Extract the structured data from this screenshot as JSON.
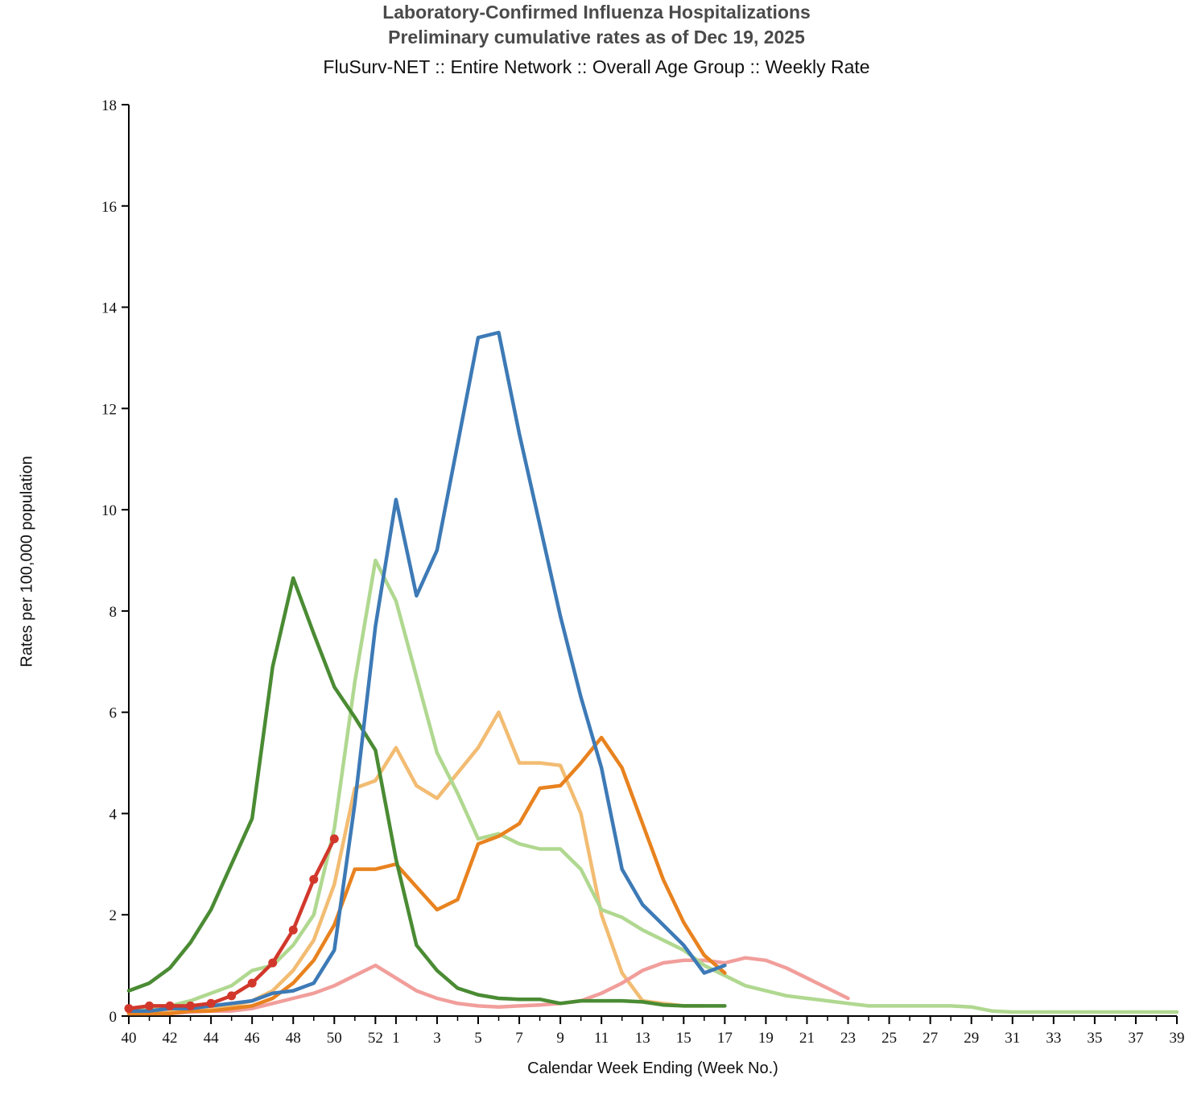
{
  "title": {
    "line1": "Laboratory-Confirmed Influenza Hospitalizations",
    "line2": "Preliminary cumulative rates as of Dec 19, 2025",
    "line3": "FluSurv-NET :: Entire Network :: Overall Age Group :: Weekly Rate"
  },
  "axes": {
    "y_label": "Rates per 100,000 population",
    "x_label": "Calendar Week Ending (Week No.)",
    "y_ticks": [
      0,
      2,
      4,
      6,
      8,
      10,
      12,
      14,
      16,
      18
    ],
    "x_tick_labels": [
      "40",
      "42",
      "44",
      "46",
      "48",
      "50",
      "52",
      "1",
      "3",
      "5",
      "7",
      "9",
      "11",
      "13",
      "15",
      "17",
      "19",
      "21",
      "23",
      "25",
      "27",
      "29",
      "31",
      "33",
      "35",
      "37",
      "39"
    ]
  },
  "chart_data": {
    "type": "line",
    "title": "Laboratory-Confirmed Influenza Hospitalizations — Weekly Rate",
    "xlabel": "Calendar Week Ending (Week No.)",
    "ylabel": "Rates per 100,000 population",
    "ylim": [
      0,
      18
    ],
    "grid": false,
    "legend": "none",
    "x_weeks": [
      40,
      41,
      42,
      43,
      44,
      45,
      46,
      47,
      48,
      49,
      50,
      51,
      52,
      1,
      2,
      3,
      4,
      5,
      6,
      7,
      8,
      9,
      10,
      11,
      12,
      13,
      14,
      15,
      16,
      17,
      18,
      19,
      20,
      21,
      22,
      23,
      24,
      25,
      26,
      27,
      28,
      29,
      30,
      31,
      32,
      33,
      34,
      35,
      36,
      37,
      38,
      39
    ],
    "series": [
      {
        "name": "tan-season",
        "color": "#f2bc72",
        "marker": false,
        "values": [
          0.05,
          0.05,
          0.1,
          0.1,
          0.15,
          0.2,
          0.3,
          0.5,
          0.9,
          1.5,
          2.6,
          4.5,
          4.65,
          5.3,
          4.55,
          4.3,
          4.8,
          5.3,
          6.0,
          5.0,
          5.0,
          4.95,
          4.0,
          2.0,
          0.85,
          0.3,
          0.25,
          0.2,
          0.2,
          null,
          null,
          null,
          null,
          null,
          null,
          null,
          null,
          null,
          null,
          null,
          null,
          null,
          null,
          null,
          null,
          null,
          null,
          null,
          null,
          null,
          null,
          null
        ]
      },
      {
        "name": "pink-season",
        "color": "#f19e9b",
        "marker": false,
        "values": [
          0.05,
          0.05,
          0.05,
          0.08,
          0.1,
          0.1,
          0.15,
          0.25,
          0.35,
          0.45,
          0.6,
          0.8,
          1.0,
          0.75,
          0.5,
          0.35,
          0.25,
          0.2,
          0.18,
          0.2,
          0.22,
          0.25,
          0.3,
          0.45,
          0.65,
          0.9,
          1.05,
          1.1,
          1.1,
          1.05,
          1.15,
          1.1,
          0.95,
          0.75,
          0.55,
          0.35,
          null,
          null,
          null,
          null,
          null,
          null,
          null,
          null,
          null,
          null,
          null,
          null,
          null,
          null,
          null,
          null
        ]
      },
      {
        "name": "light-green-season",
        "color": "#b0d890",
        "marker": false,
        "values": [
          0.1,
          0.15,
          0.2,
          0.3,
          0.45,
          0.6,
          0.9,
          1.0,
          1.4,
          2.0,
          3.7,
          6.6,
          9.0,
          8.2,
          6.7,
          5.2,
          4.4,
          3.5,
          3.6,
          3.4,
          3.3,
          3.3,
          2.9,
          2.1,
          1.95,
          1.7,
          1.5,
          1.3,
          1.0,
          0.8,
          0.6,
          0.5,
          0.4,
          0.35,
          0.3,
          0.25,
          0.2,
          0.2,
          0.2,
          0.2,
          0.2,
          0.18,
          0.1,
          0.08,
          0.08,
          0.08,
          0.08,
          0.08,
          0.08,
          0.08,
          0.08,
          0.08
        ]
      },
      {
        "name": "orange-season",
        "color": "#e8821f",
        "marker": false,
        "values": [
          0.05,
          0.05,
          0.05,
          0.1,
          0.1,
          0.15,
          0.2,
          0.35,
          0.65,
          1.1,
          1.8,
          2.9,
          2.9,
          3.0,
          2.55,
          2.1,
          2.3,
          3.4,
          3.55,
          3.8,
          4.5,
          4.55,
          5.0,
          5.5,
          4.9,
          3.8,
          2.7,
          1.85,
          1.2,
          0.85,
          null,
          null,
          null,
          null,
          null,
          null,
          null,
          null,
          null,
          null,
          null,
          null,
          null,
          null,
          null,
          null,
          null,
          null,
          null,
          null,
          null,
          null
        ]
      },
      {
        "name": "dark-green-season",
        "color": "#4a8b33",
        "marker": false,
        "values": [
          0.5,
          0.65,
          0.95,
          1.45,
          2.1,
          3.0,
          3.9,
          6.9,
          8.65,
          7.55,
          6.5,
          5.9,
          5.25,
          3.1,
          1.4,
          0.9,
          0.55,
          0.42,
          0.35,
          0.33,
          0.33,
          0.25,
          0.3,
          0.3,
          0.3,
          0.28,
          0.22,
          0.2,
          0.2,
          0.2,
          null,
          null,
          null,
          null,
          null,
          null,
          null,
          null,
          null,
          null,
          null,
          null,
          null,
          null,
          null,
          null,
          null,
          null,
          null,
          null,
          null,
          null
        ]
      },
      {
        "name": "blue-season",
        "color": "#3d7ab6",
        "marker": false,
        "values": [
          0.1,
          0.1,
          0.15,
          0.15,
          0.2,
          0.25,
          0.3,
          0.45,
          0.5,
          0.65,
          1.3,
          4.2,
          7.7,
          10.2,
          8.3,
          9.2,
          11.3,
          13.4,
          13.5,
          11.5,
          9.7,
          7.9,
          6.3,
          4.9,
          2.9,
          2.2,
          1.8,
          1.4,
          0.85,
          1.0,
          null,
          null,
          null,
          null,
          null,
          null,
          null,
          null,
          null,
          null,
          null,
          null,
          null,
          null,
          null,
          null,
          null,
          null,
          null,
          null,
          null,
          null
        ]
      },
      {
        "name": "red-current-season",
        "color": "#d1382b",
        "marker": true,
        "values": [
          0.15,
          0.2,
          0.2,
          0.2,
          0.25,
          0.4,
          0.65,
          1.05,
          1.7,
          2.7,
          3.5,
          null,
          null,
          null,
          null,
          null,
          null,
          null,
          null,
          null,
          null,
          null,
          null,
          null,
          null,
          null,
          null,
          null,
          null,
          null,
          null,
          null,
          null,
          null,
          null,
          null,
          null,
          null,
          null,
          null,
          null,
          null,
          null,
          null,
          null,
          null,
          null,
          null,
          null,
          null,
          null,
          null
        ]
      }
    ]
  }
}
